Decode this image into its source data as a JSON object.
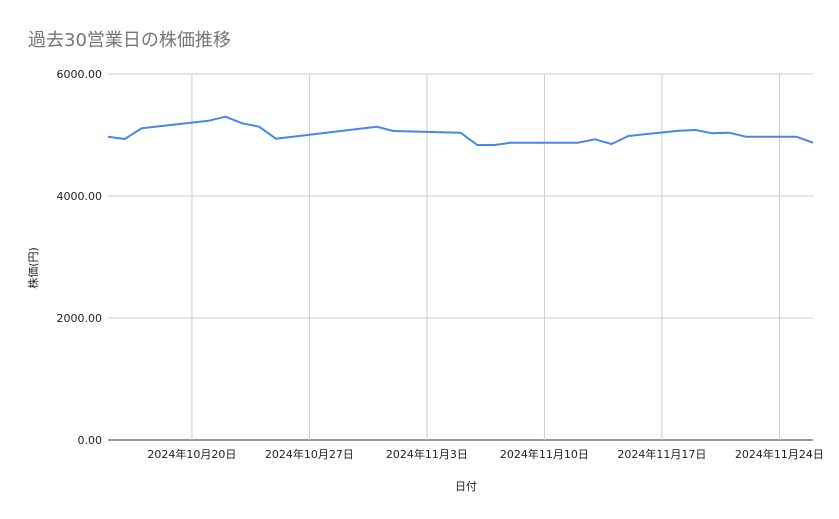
{
  "chart_data": {
    "type": "line",
    "title": "過去30営業日の株価推移",
    "xlabel": "日付",
    "ylabel": "株価(円)",
    "ylim": [
      0,
      6000
    ],
    "yticks": [
      "0.00",
      "2000.00",
      "4000.00",
      "6000.00"
    ],
    "xlim": [
      "2024-10-15",
      "2024-11-26"
    ],
    "xticks": [
      {
        "date": "2024-10-20",
        "label": "2024年10月20日"
      },
      {
        "date": "2024-10-27",
        "label": "2024年10月27日"
      },
      {
        "date": "2024-11-03",
        "label": "2024年11月3日"
      },
      {
        "date": "2024-11-10",
        "label": "2024年11月10日"
      },
      {
        "date": "2024-11-17",
        "label": "2024年11月17日"
      },
      {
        "date": "2024-11-24",
        "label": "2024年11月24日"
      }
    ],
    "grid": true,
    "color": "#4a86e8",
    "x": [
      "2024-10-15",
      "2024-10-16",
      "2024-10-17",
      "2024-10-18",
      "2024-10-21",
      "2024-10-22",
      "2024-10-23",
      "2024-10-24",
      "2024-10-25",
      "2024-10-28",
      "2024-10-29",
      "2024-10-30",
      "2024-10-31",
      "2024-11-01",
      "2024-11-05",
      "2024-11-06",
      "2024-11-07",
      "2024-11-08",
      "2024-11-11",
      "2024-11-12",
      "2024-11-13",
      "2024-11-14",
      "2024-11-15",
      "2024-11-18",
      "2024-11-19",
      "2024-11-20",
      "2024-11-21",
      "2024-11-22",
      "2024-11-25",
      "2024-11-26"
    ],
    "values": [
      4972,
      4934,
      5110,
      5141,
      5234,
      5300,
      5192,
      5136,
      4939,
      5038,
      5070,
      5103,
      5136,
      5066,
      5038,
      4836,
      4836,
      4874,
      4874,
      4874,
      4929,
      4852,
      4984,
      5070,
      5082,
      5028,
      5038,
      4972,
      4972,
      4874
    ]
  }
}
